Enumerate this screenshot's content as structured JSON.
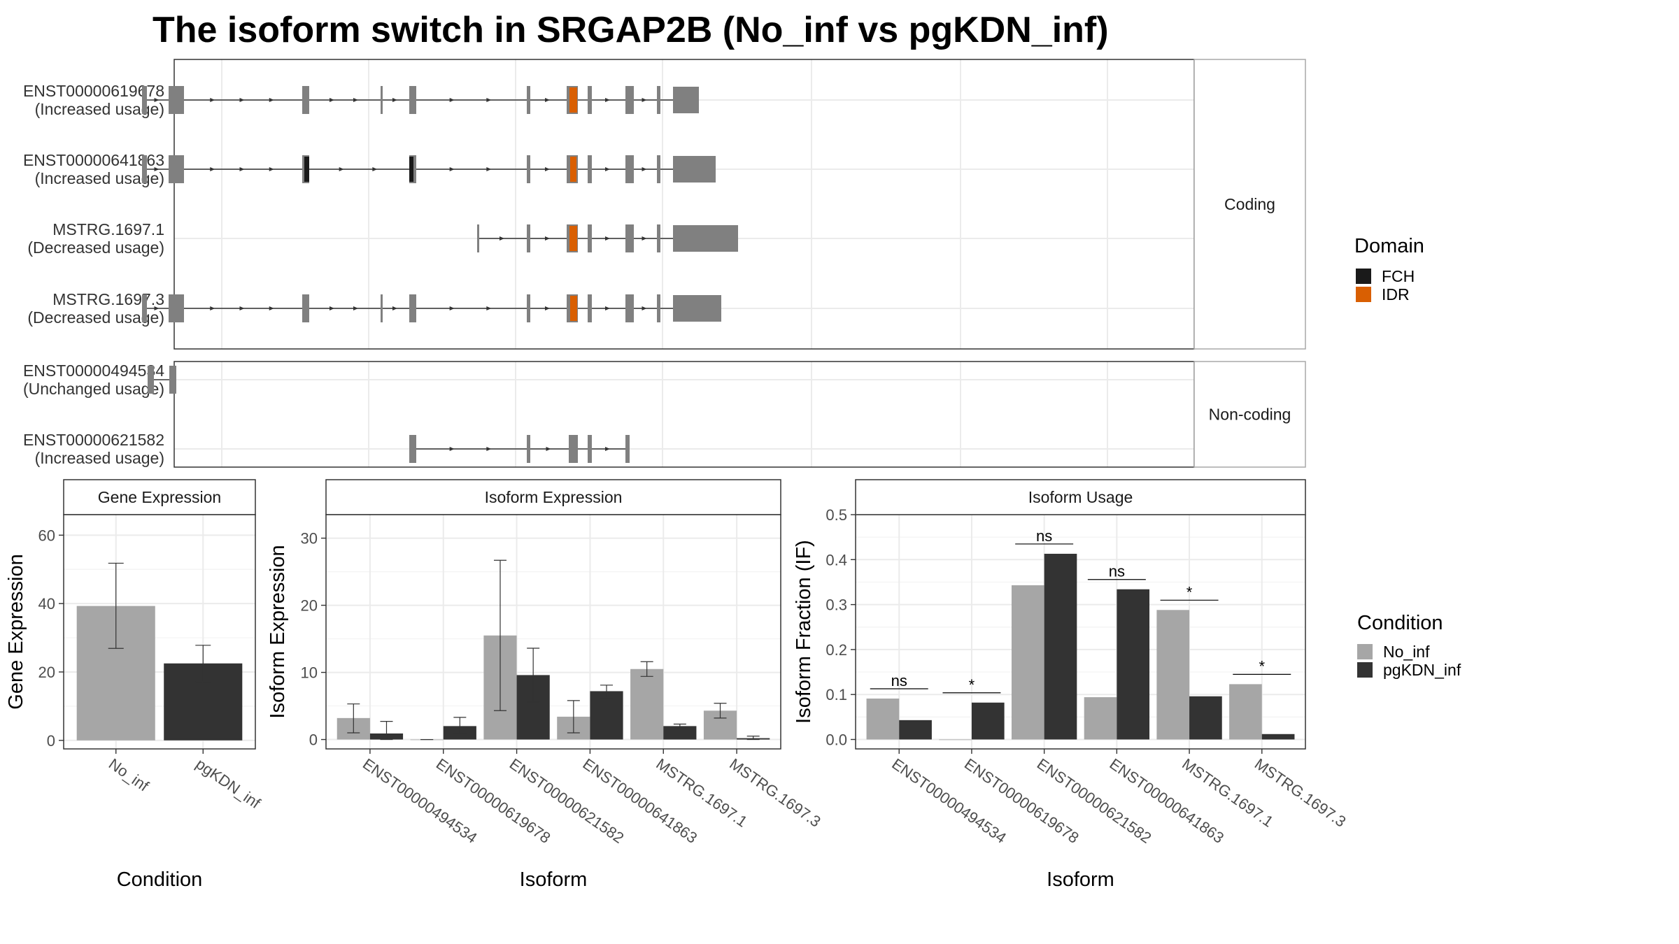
{
  "title": "The isoform switch in SRGAP2B (No_inf vs pgKDN_inf)",
  "chart_data": [
    {
      "type": "isoform_structure",
      "coding_strip": "Coding",
      "noncoding_strip": "Non-coding",
      "domain_legend": {
        "title": "Domain",
        "items": [
          {
            "name": "FCH",
            "color": "#1a1a1a"
          },
          {
            "name": "IDR",
            "color": "#d95f02"
          }
        ]
      },
      "transcripts": [
        {
          "id": "ENST00000619678",
          "usage": "(Increased usage)",
          "group": "coding",
          "exons": [
            [
              203,
              210
            ],
            [
              241,
              263
            ],
            [
              432,
              442
            ],
            [
              544,
              547
            ],
            [
              585,
              595
            ],
            [
              753,
              758
            ],
            [
              810,
              826
            ],
            [
              840,
              846
            ],
            [
              894,
              906
            ],
            [
              939,
              944
            ],
            [
              962,
              999
            ]
          ],
          "small_exons": [
            [
              753,
              758
            ]
          ],
          "domains": [
            {
              "name": "IDR",
              "from": 814,
              "to": 825
            }
          ]
        },
        {
          "id": "ENST00000641863",
          "usage": "(Increased usage)",
          "group": "coding",
          "exons": [
            [
              203,
              210
            ],
            [
              241,
              263
            ],
            [
              432,
              442
            ],
            [
              585,
              595
            ],
            [
              753,
              758
            ],
            [
              810,
              826
            ],
            [
              840,
              846
            ],
            [
              894,
              906
            ],
            [
              939,
              944
            ],
            [
              962,
              1023
            ]
          ],
          "domains": [
            {
              "name": "FCH",
              "from": 435,
              "to": 442
            },
            {
              "name": "FCH",
              "from": 585,
              "to": 591
            },
            {
              "name": "IDR",
              "from": 815,
              "to": 824
            }
          ]
        },
        {
          "id": "MSTRG.1697.1",
          "usage": "(Decreased usage)",
          "group": "coding",
          "exons": [
            [
              682,
              685
            ],
            [
              753,
              758
            ],
            [
              810,
              826
            ],
            [
              840,
              846
            ],
            [
              894,
              906
            ],
            [
              939,
              944
            ],
            [
              962,
              1055
            ]
          ],
          "domains": [
            {
              "name": "IDR",
              "from": 814,
              "to": 825
            }
          ]
        },
        {
          "id": "MSTRG.1697.3",
          "usage": "(Decreased usage)",
          "group": "coding",
          "exons": [
            [
              203,
              210
            ],
            [
              241,
              263
            ],
            [
              432,
              442
            ],
            [
              544,
              547
            ],
            [
              585,
              595
            ],
            [
              753,
              758
            ],
            [
              810,
              826
            ],
            [
              840,
              846
            ],
            [
              894,
              906
            ],
            [
              939,
              944
            ],
            [
              962,
              1031
            ]
          ],
          "domains": [
            {
              "name": "IDR",
              "from": 815,
              "to": 825
            }
          ]
        },
        {
          "id": "ENST00000494534",
          "usage": "(Unchanged usage)",
          "group": "noncoding",
          "exons": [
            [
              211,
              220
            ],
            [
              242,
              252
            ]
          ],
          "domains": []
        },
        {
          "id": "ENST00000621582",
          "usage": "(Increased usage)",
          "group": "noncoding",
          "exons": [
            [
              585,
              595
            ],
            [
              753,
              758
            ],
            [
              813,
              826
            ],
            [
              840,
              846
            ],
            [
              894,
              900
            ]
          ],
          "domains": []
        }
      ]
    },
    {
      "type": "bar",
      "title": "Gene Expression",
      "xlabel": "Condition",
      "ylabel": "Gene Expression",
      "ylim": [
        -2.5,
        66
      ],
      "yticks": [
        0,
        20,
        40,
        60
      ],
      "categories": [
        "No_inf",
        "pgKDN_inf"
      ],
      "values": [
        39.3,
        22.5
      ],
      "err_low": [
        26.9,
        17.2
      ],
      "err_high": [
        51.8,
        27.8
      ]
    },
    {
      "type": "bar",
      "title": "Isoform Expression",
      "xlabel": "Isoform",
      "ylabel": "Isoform Expression",
      "ylim": [
        -1.4,
        33.5
      ],
      "yticks": [
        0,
        10,
        20,
        30
      ],
      "categories": [
        "ENST00000494534",
        "ENST00000619678",
        "ENST00000621582",
        "ENST00000641863",
        "MSTRG.1697.1",
        "MSTRG.1697.3"
      ],
      "series": [
        {
          "name": "No_inf",
          "values": [
            3.2,
            0.0,
            15.5,
            3.4,
            10.5,
            4.3
          ],
          "err_low": [
            1.0,
            0.0,
            4.3,
            1.0,
            9.4,
            3.2
          ],
          "err_high": [
            5.3,
            0.0,
            26.7,
            5.8,
            11.6,
            5.4
          ]
        },
        {
          "name": "pgKDN_inf",
          "values": [
            0.9,
            2.0,
            9.6,
            7.2,
            2.0,
            0.2
          ],
          "err_low": [
            0.0,
            0.8,
            5.6,
            6.2,
            1.6,
            0.0
          ],
          "err_high": [
            2.7,
            3.3,
            13.6,
            8.1,
            2.3,
            0.5
          ]
        }
      ]
    },
    {
      "type": "bar",
      "title": "Isoform Usage",
      "xlabel": "Isoform",
      "ylabel": "Isoform Fraction (IF)",
      "ylim": [
        -0.021,
        0.5
      ],
      "yticks": [
        0.0,
        0.1,
        0.2,
        0.3,
        0.4,
        0.5
      ],
      "categories": [
        "ENST00000494534",
        "ENST00000619678",
        "ENST00000621582",
        "ENST00000641863",
        "MSTRG.1697.1",
        "MSTRG.1697.3"
      ],
      "significance": [
        "ns",
        "*",
        "ns",
        "ns",
        "*",
        "*"
      ],
      "series": [
        {
          "name": "No_inf",
          "values": [
            0.091,
            0.0,
            0.343,
            0.094,
            0.288,
            0.123
          ]
        },
        {
          "name": "pgKDN_inf",
          "values": [
            0.043,
            0.082,
            0.413,
            0.334,
            0.096,
            0.012
          ]
        }
      ]
    }
  ],
  "condition_legend": {
    "title": "Condition",
    "items": [
      {
        "name": "No_inf",
        "color": "#a6a6a6"
      },
      {
        "name": "pgKDN_inf",
        "color": "#333333"
      }
    ]
  },
  "colors": {
    "exon": "#808080",
    "intron": "#333333",
    "no_inf": "#a6a6a6",
    "pgkdn_inf": "#333333",
    "grid": "#ebebeb"
  }
}
